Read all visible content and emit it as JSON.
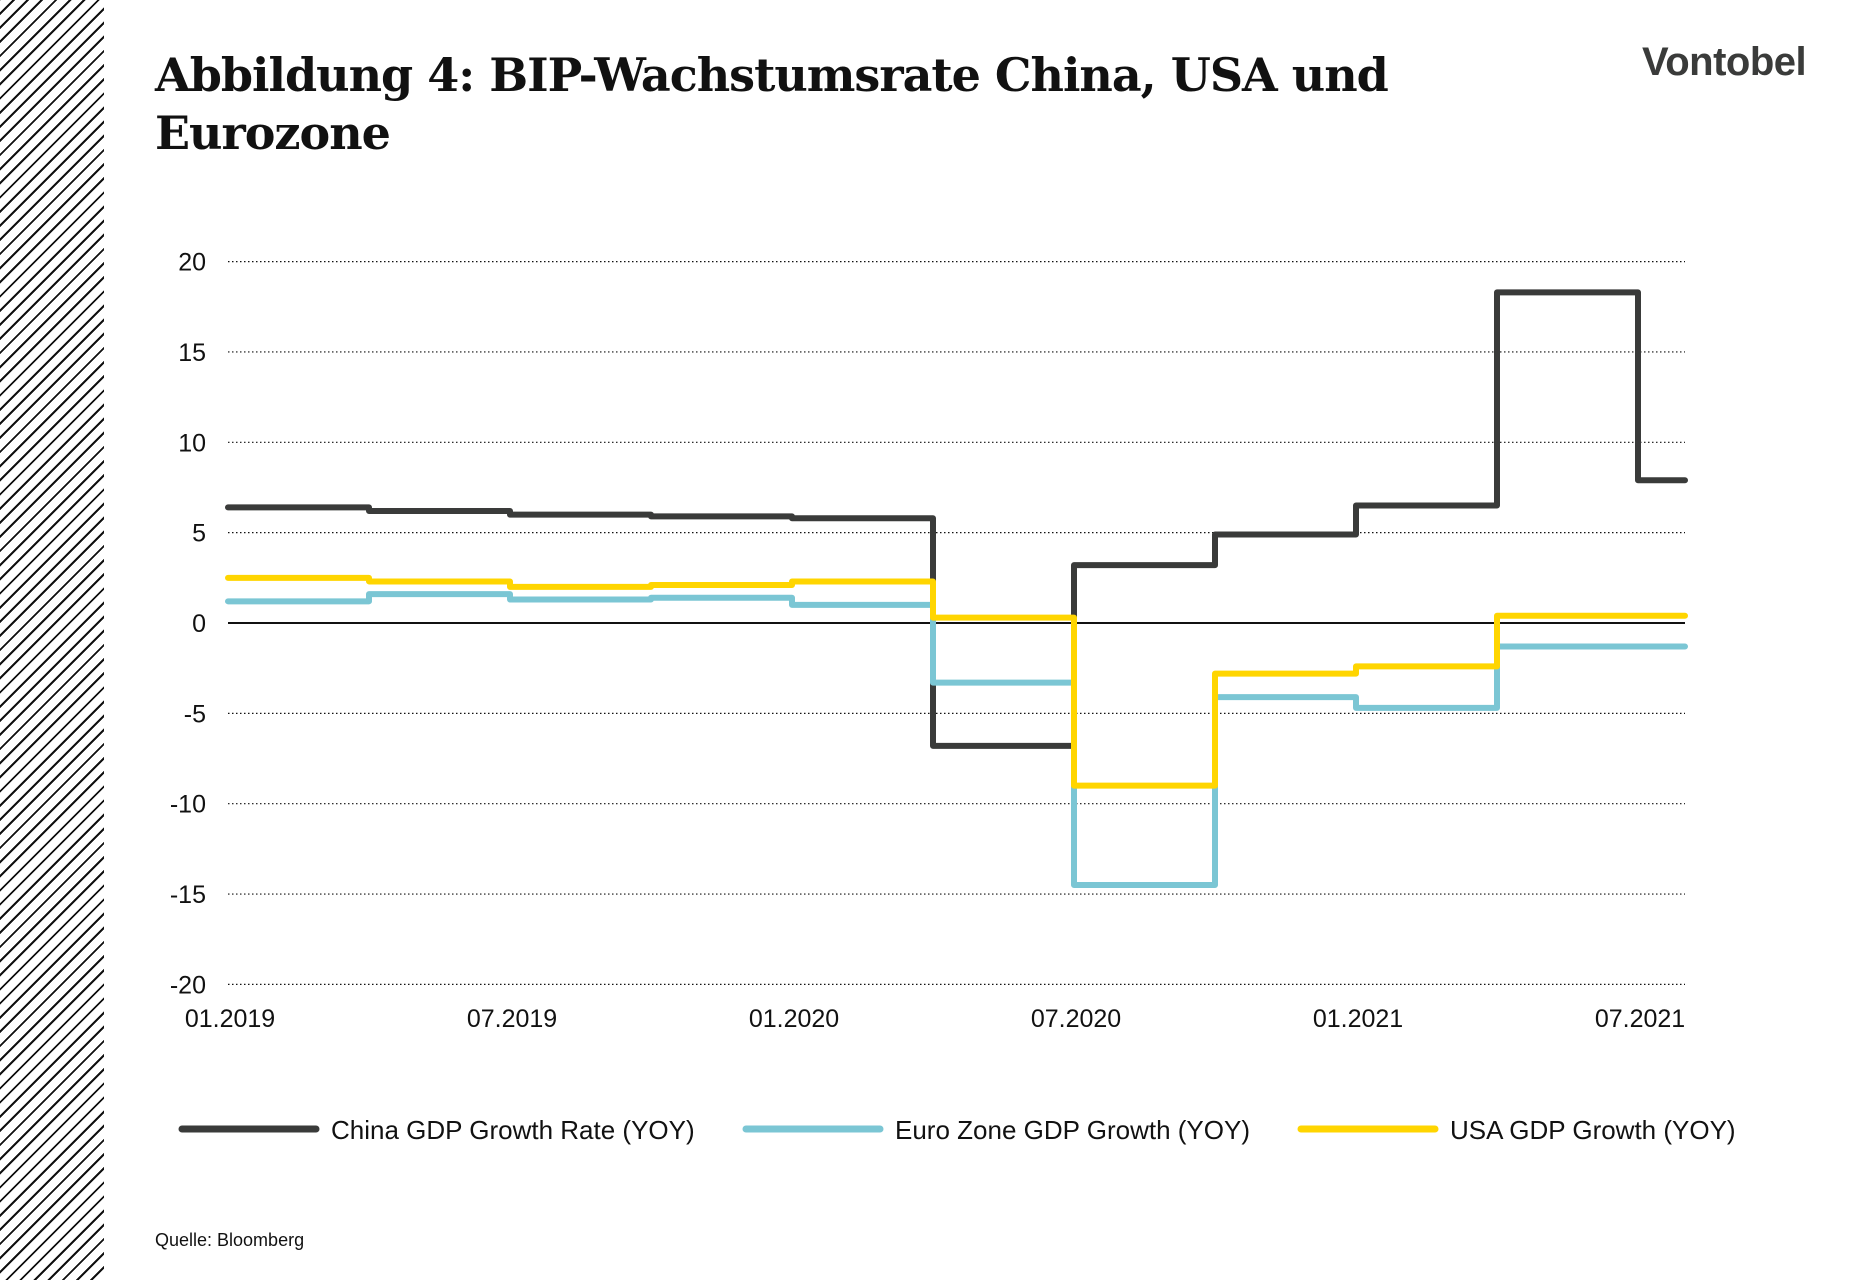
{
  "header": {
    "title": "Abbildung 4: BIP-Wachstumsrate China, USA und Eurozone",
    "logo": "Vontobel"
  },
  "source": "Quelle: Bloomberg",
  "chart_data": {
    "type": "line",
    "step": "after",
    "title": "",
    "xlabel": "",
    "ylabel": "",
    "ylim": [
      -20,
      20
    ],
    "yticks": [
      20,
      15,
      10,
      5,
      0,
      -5,
      -10,
      -15,
      -20
    ],
    "xlim": [
      "2019-01",
      "2021-08"
    ],
    "xticks": [
      {
        "date": "2019-01",
        "label": "01.2019"
      },
      {
        "date": "2019-07",
        "label": "07.2019"
      },
      {
        "date": "2020-01",
        "label": "01.2020"
      },
      {
        "date": "2020-07",
        "label": "07.2020"
      },
      {
        "date": "2021-01",
        "label": "01.2021"
      },
      {
        "date": "2021-07",
        "label": "07.2021"
      }
    ],
    "grid": "horizontal dotted",
    "legend_position": "bottom",
    "x": [
      "2019-01",
      "2019-04",
      "2019-07",
      "2019-10",
      "2020-01",
      "2020-04",
      "2020-07",
      "2020-10",
      "2021-01",
      "2021-04",
      "2021-07"
    ],
    "series": [
      {
        "name": "China GDP Growth Rate (YOY)",
        "color": "#3a3b3a",
        "values": [
          6.4,
          6.2,
          6.0,
          5.9,
          5.8,
          -6.8,
          3.2,
          4.9,
          6.5,
          18.3,
          7.9
        ]
      },
      {
        "name": "Euro Zone GDP Growth (YOY)",
        "color": "#7bc6d4",
        "values": [
          1.2,
          1.6,
          1.3,
          1.4,
          1.0,
          -3.3,
          -14.5,
          -4.1,
          -4.7,
          -1.3,
          -1.3
        ]
      },
      {
        "name": "USA GDP Growth (YOY)",
        "color": "#ffd500",
        "values": [
          2.5,
          2.3,
          2.0,
          2.1,
          2.3,
          0.3,
          -9.0,
          -2.8,
          -2.4,
          0.4,
          0.4
        ]
      }
    ]
  }
}
